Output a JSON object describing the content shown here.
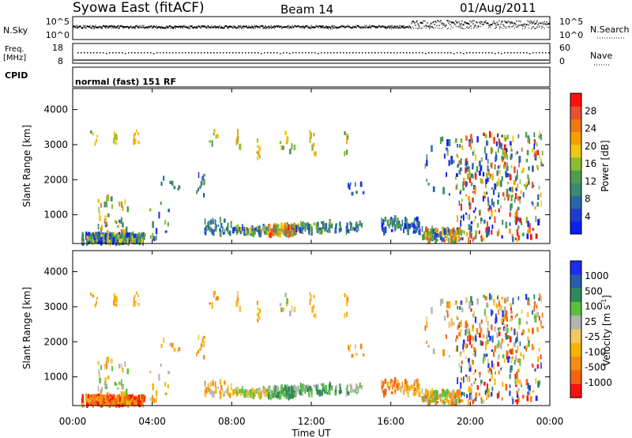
{
  "header": {
    "station": "Syowa East (fitACF)",
    "beam": "Beam 14",
    "date": "01/Aug/2011"
  },
  "noise_panel": {
    "left_label": "N.Sky",
    "right_label": "N.Search",
    "left_ticks": [
      "10^5",
      "10^0"
    ],
    "right_ticks": [
      "10^5",
      "10^0"
    ]
  },
  "freq_panel": {
    "left_label_1": "Freq.",
    "left_label_2": "[MHz]",
    "right_label": "Nave",
    "left_ticks": [
      "18",
      "8"
    ],
    "right_ticks": [
      "60",
      "0"
    ]
  },
  "cpid_panel": {
    "label": "CPID",
    "text": "normal (fast) 151 RF"
  },
  "chart_data": [
    {
      "type": "heatmap",
      "panel": "power",
      "ylabel": "Slant Range [km]",
      "yticks": [
        1000,
        2000,
        3000,
        4000
      ],
      "ylim": [
        180,
        4600
      ],
      "xlim_hours": [
        0,
        24
      ],
      "colorbar": {
        "label": "Power [dB]",
        "ticks": [
          "4",
          "8",
          "12",
          "16",
          "20",
          "24",
          "28"
        ],
        "colors": [
          "#0a1ef5",
          "#1f3bd0",
          "#2a66a8",
          "#3d8a6e",
          "#4f9c50",
          "#8bbd32",
          "#f0c814",
          "#f5a000",
          "#f07814",
          "#e85030",
          "#ff1010"
        ]
      }
    },
    {
      "type": "heatmap",
      "panel": "velocity",
      "ylabel": "Slant Range [km]",
      "yticks": [
        1000,
        2000,
        3000,
        4000
      ],
      "ylim": [
        180,
        4600
      ],
      "xlim_hours": [
        0,
        24
      ],
      "colorbar": {
        "label": "Velocity [m s",
        "label_sup": "-1",
        "label_end": "]",
        "ticks": [
          "1000",
          "500",
          "100",
          "25",
          "-25",
          "-100",
          "-500",
          "-1000"
        ],
        "colors": [
          "#1c2cf0",
          "#2a5ea8",
          "#2f8a5a",
          "#5bc03a",
          "#b4b4b4",
          "#f0c864",
          "#f5b400",
          "#f58c14",
          "#f06414",
          "#ff1010"
        ]
      }
    }
  ],
  "xaxis": {
    "label": "Time UT",
    "ticks": [
      "00:00",
      "04:00",
      "08:00",
      "12:00",
      "16:00",
      "20:00",
      "00:00"
    ]
  }
}
